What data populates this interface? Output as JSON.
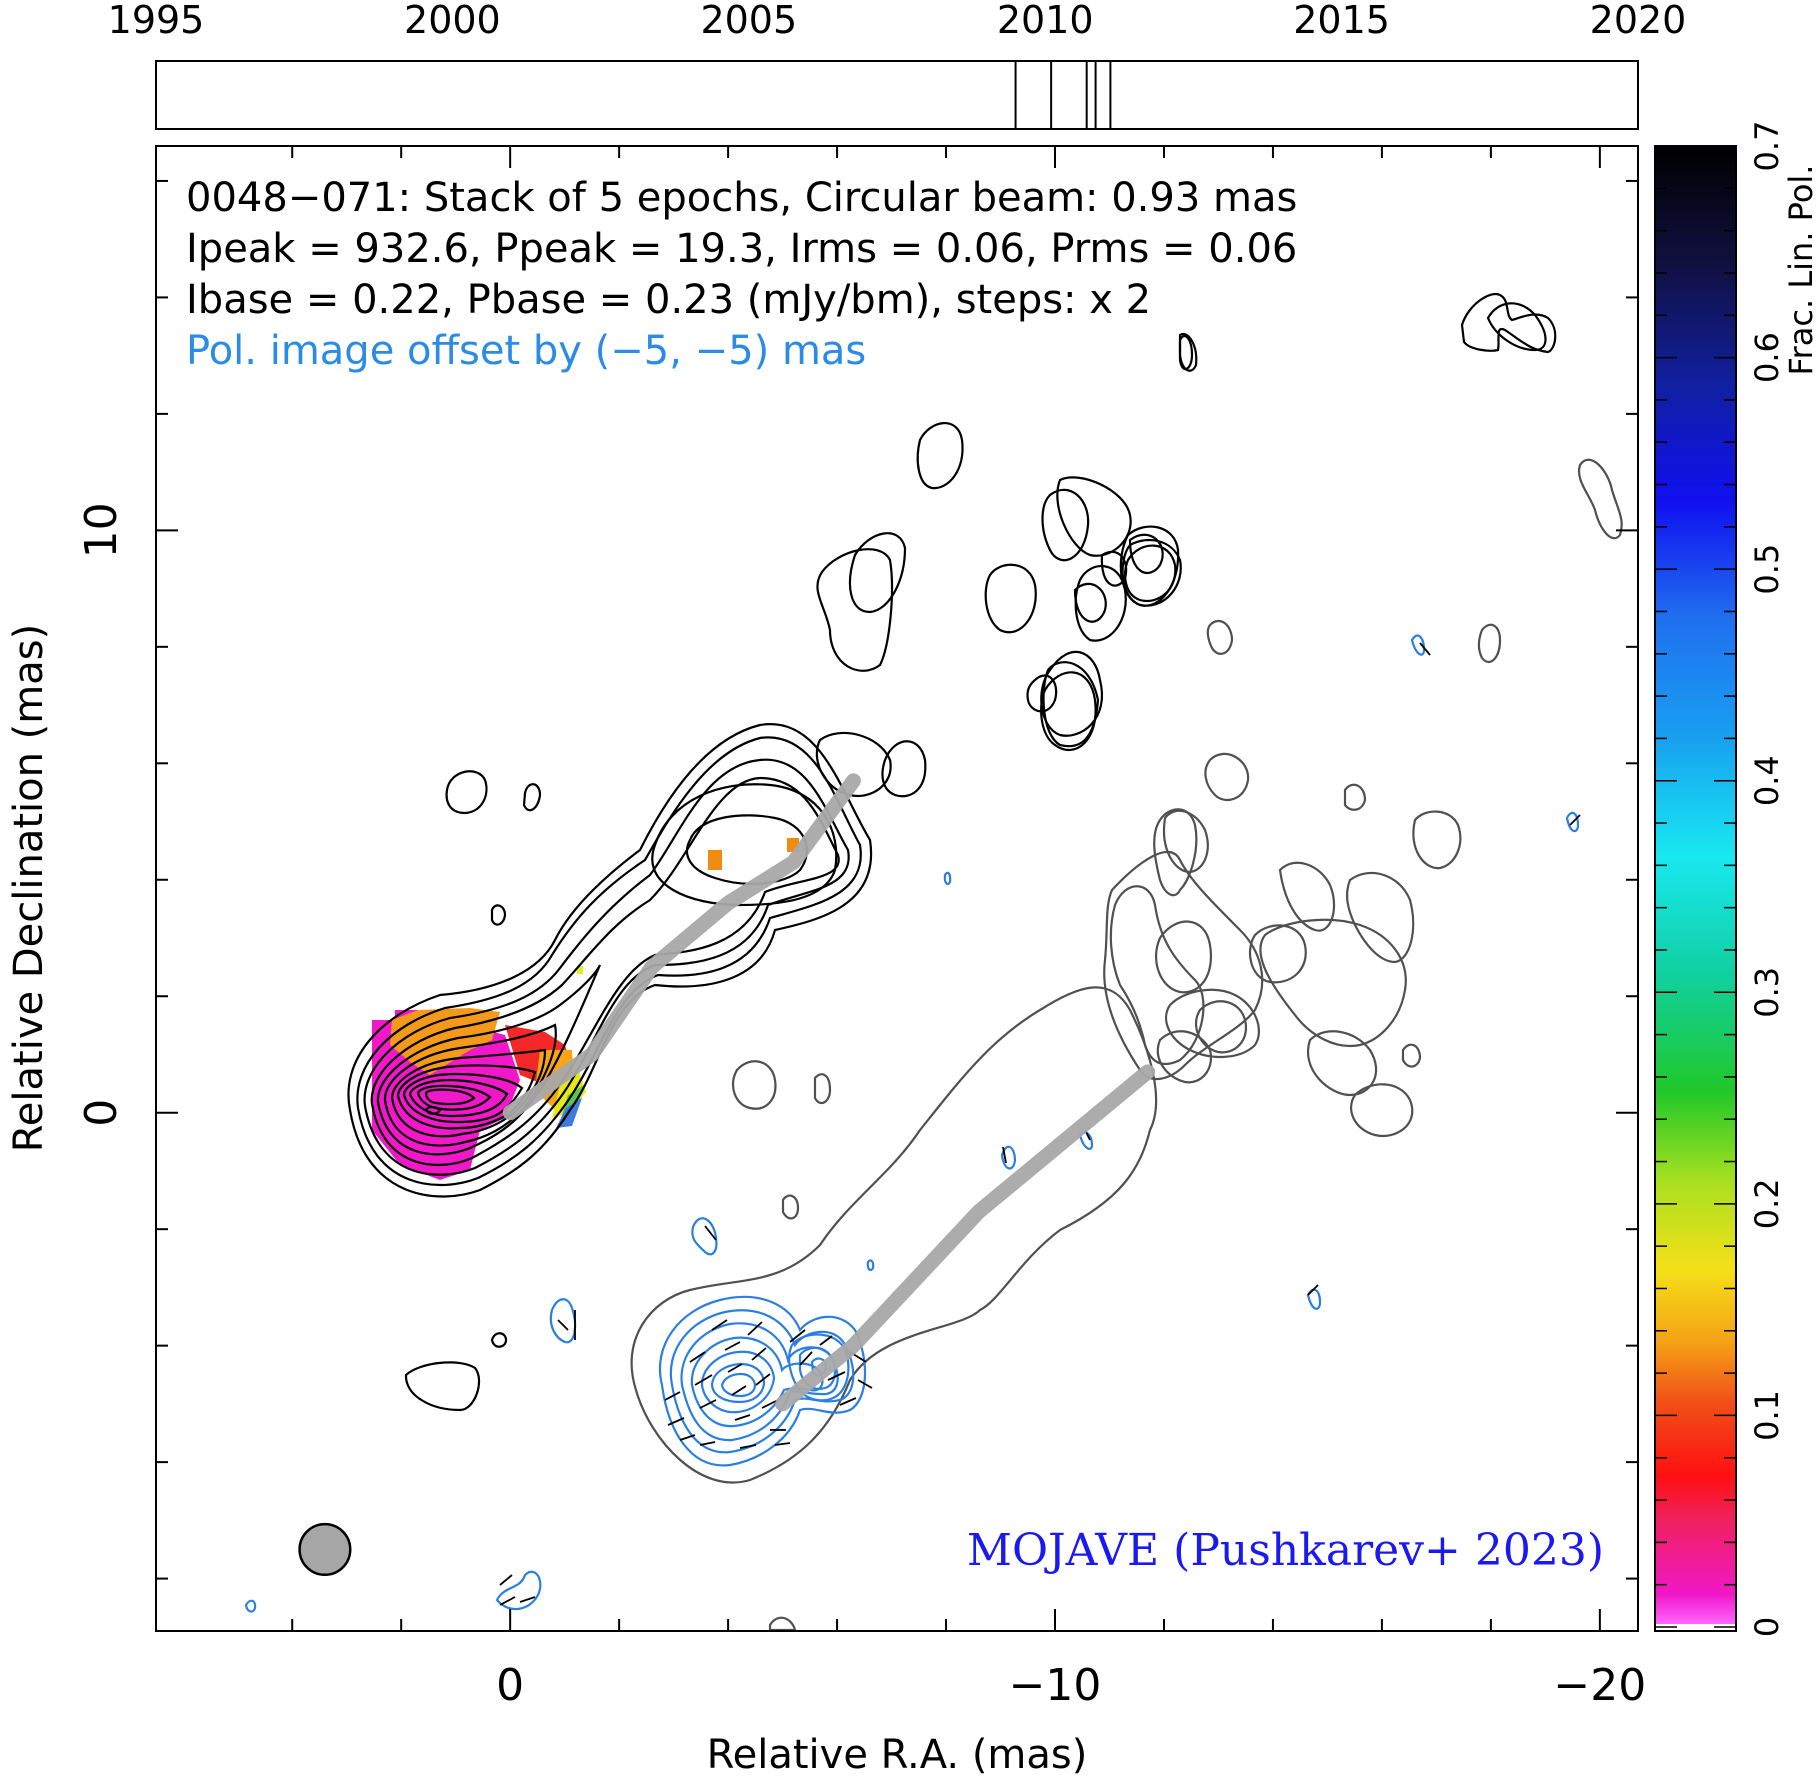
{
  "chart_data": {
    "type": "heatmap",
    "source": "0048−071",
    "header_lines": [
      "0048−071: Stack of 5 epochs, Circular beam: 0.93 mas",
      "Ipeak = 932.6, Ppeak = 19.3, Irms = 0.06, Prms = 0.06",
      "Ibase = 0.22, Pbase = 0.23 (mJy/bm), steps: x 2"
    ],
    "offset_note": "Pol. image offset by (−5, −5) mas",
    "credit": "MOJAVE (Pushkarev+ 2023)",
    "xlabel": "Relative R.A. (mas)",
    "ylabel": "Relative Declination (mas)",
    "xlim": [
      6.5,
      -20.7
    ],
    "ylim": [
      -8.9,
      16.6
    ],
    "x_ticks": [
      0,
      -10,
      -20
    ],
    "x_tick_labels": [
      "0",
      "−10",
      "−20"
    ],
    "y_ticks": [
      0,
      10
    ],
    "y_tick_labels": [
      "0",
      "10"
    ],
    "epoch_timeline": {
      "range": [
        1995,
        2020
      ],
      "tick_labels": [
        "1995",
        "2000",
        "2005",
        "2010",
        "2015",
        "2020"
      ],
      "epochs": [
        2009.5,
        2010.1,
        2010.7,
        2010.85,
        2011.1
      ]
    },
    "colorbar": {
      "label": "Frac. Lin. Pol.",
      "range": [
        0,
        0.7
      ],
      "tick_labels": [
        "0",
        "0.1",
        "0.2",
        "0.3",
        "0.4",
        "0.5",
        "0.6",
        "0.7"
      ]
    },
    "beam_diameter_mas": 0.93,
    "total_intensity_ridge": [
      [
        0,
        0
      ],
      [
        -1.5,
        1.0
      ],
      [
        -2.6,
        2.5
      ],
      [
        -4,
        3.6
      ],
      [
        -5.2,
        4.3
      ],
      [
        -6.3,
        5.7
      ]
    ],
    "polarized_ridge": [
      [
        -5,
        -5
      ],
      [
        -6.3,
        -4.0
      ],
      [
        -8.6,
        -1.7
      ],
      [
        -11.7,
        0.7
      ]
    ],
    "colors": {
      "intensity_contour": "#000000",
      "outer_contour": "#505050",
      "pol_contour": "#2b7fe0",
      "ridge": "#a8a8a8",
      "note_text": "#2b8be6",
      "credit_text": "#1a1af0"
    }
  }
}
